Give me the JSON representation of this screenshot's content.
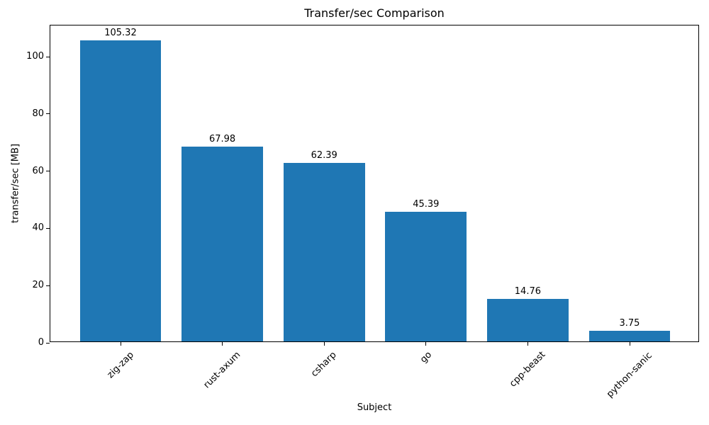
{
  "chart_data": {
    "type": "bar",
    "title": "Transfer/sec Comparison",
    "xlabel": "Subject",
    "ylabel": "transfer/sec [MB]",
    "categories": [
      "zig-zap",
      "rust-axum",
      "csharp",
      "go",
      "cpp-beast",
      "python-sanic"
    ],
    "values": [
      105.32,
      67.98,
      62.39,
      45.39,
      14.76,
      3.75
    ],
    "bar_value_labels": [
      "105.32",
      "67.98",
      "62.39",
      "45.39",
      "14.76",
      "3.75"
    ],
    "yticks": [
      0,
      20,
      40,
      60,
      80,
      100
    ],
    "ylim": [
      0,
      110.9
    ],
    "x_tick_rotation_deg": 45,
    "grid": false,
    "legend": "none",
    "colors": {
      "bar": "#1f77b4",
      "background": "#ffffff",
      "text": "#000000",
      "spine": "#000000"
    }
  }
}
